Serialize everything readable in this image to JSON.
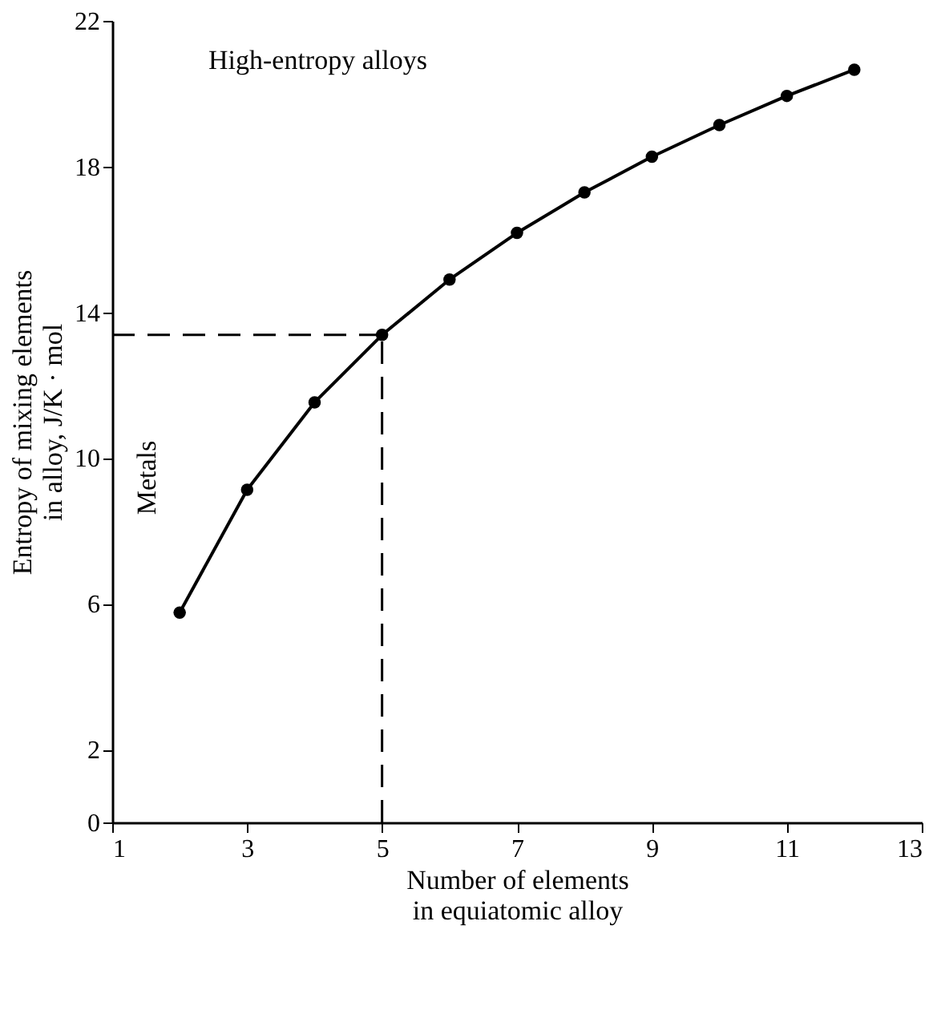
{
  "chart_data": {
    "type": "line",
    "xlabel": "Number of elements\nin equiatomic alloy",
    "ylabel": "Entropy of mixing elements\nin alloy, J/K · mol",
    "x": [
      2,
      3,
      4,
      5,
      6,
      7,
      8,
      9,
      10,
      11,
      12
    ],
    "series": [
      {
        "color": "#000000",
        "values": [
          5.76,
          9.13,
          11.53,
          13.38,
          14.9,
          16.18,
          17.29,
          18.27,
          19.14,
          19.94,
          20.66
        ]
      }
    ],
    "xlim": [
      1,
      13
    ],
    "xticks": [
      1,
      3,
      5,
      7,
      9,
      11,
      13
    ],
    "ylim": [
      0,
      22
    ],
    "yticks": [
      0,
      2,
      6,
      10,
      14,
      18,
      22
    ],
    "marker": "circle",
    "line_style": "solid",
    "grid": false,
    "ref_lines": [
      {
        "axis": "x",
        "value": 5,
        "line_style": "dashed",
        "color": "#000000"
      },
      {
        "axis": "y",
        "value": 13.38,
        "line_style": "dashed",
        "color": "#000000"
      }
    ],
    "annotations": [
      "High-entropy alloys",
      "Metals"
    ]
  }
}
